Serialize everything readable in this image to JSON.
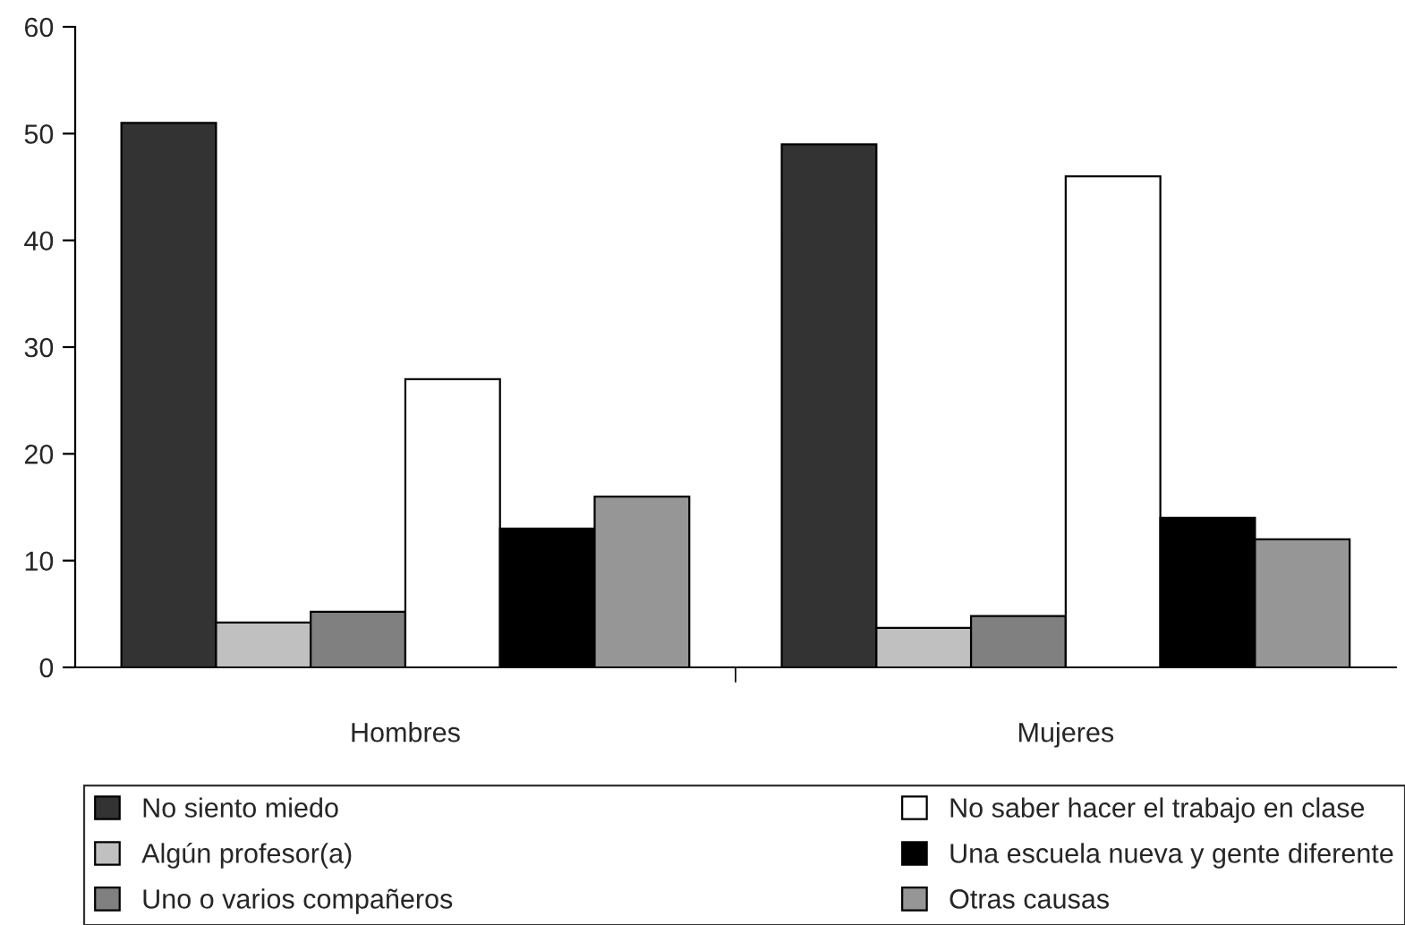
{
  "chart_data": {
    "type": "bar",
    "categories": [
      "Hombres",
      "Mujeres"
    ],
    "series": [
      {
        "name": "No siento miedo",
        "color": "#333333",
        "values": [
          51,
          49
        ]
      },
      {
        "name": "Algún profesor(a)",
        "color": "#c0c0c0",
        "values": [
          4.2,
          3.7
        ]
      },
      {
        "name": "Uno o varios compañeros",
        "color": "#808080",
        "values": [
          5.2,
          4.8
        ]
      },
      {
        "name": "No saber hacer el trabajo en clase",
        "color": "#ffffff",
        "values": [
          27,
          46
        ]
      },
      {
        "name": "Una escuela nueva y gente diferente",
        "color": "#000000",
        "values": [
          13,
          14
        ]
      },
      {
        "name": "Otras causas",
        "color": "#969696",
        "values": [
          16,
          12
        ]
      }
    ],
    "ylim": [
      0,
      60
    ],
    "yticks": [
      0,
      10,
      20,
      30,
      40,
      50,
      60
    ],
    "grid": false,
    "legend": "bottom"
  }
}
